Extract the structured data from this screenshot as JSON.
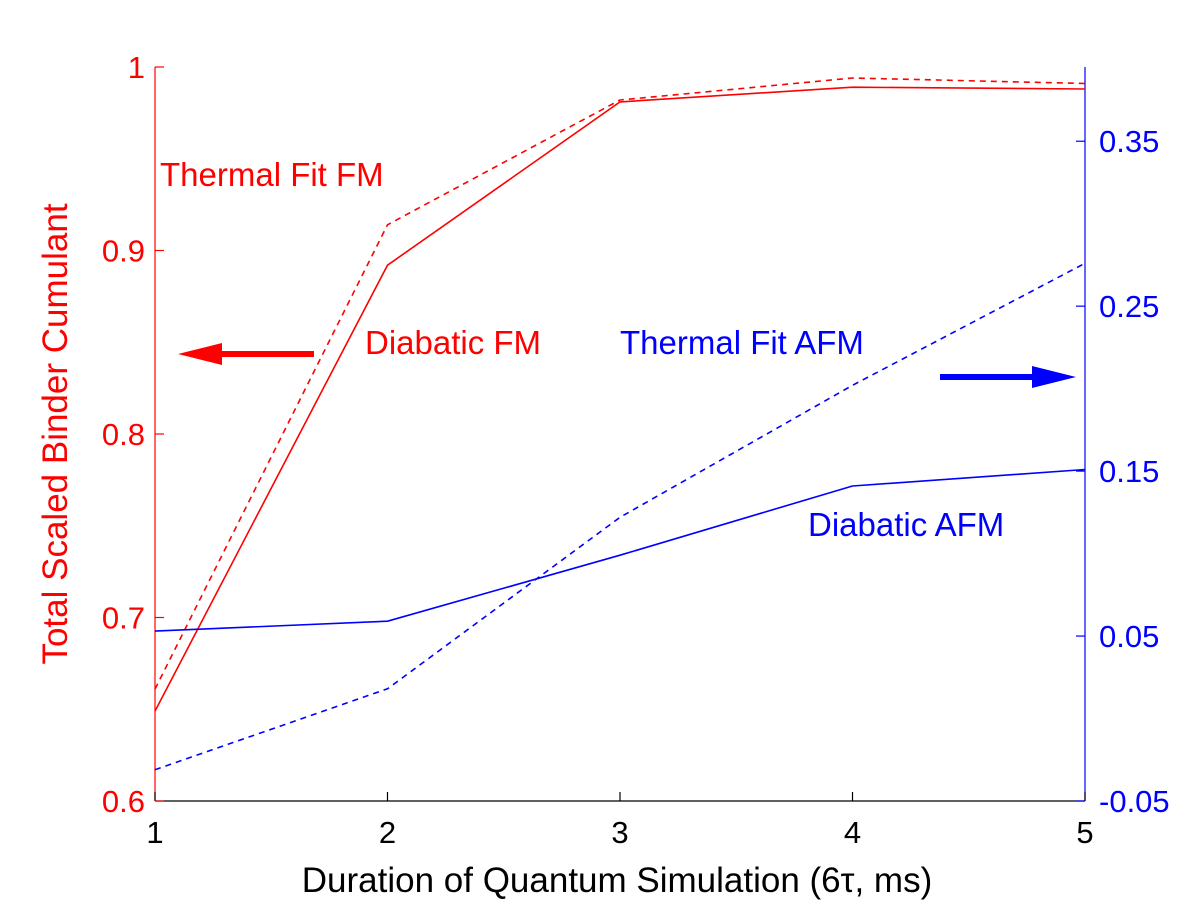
{
  "chart_data": {
    "type": "line",
    "x": [
      1,
      2,
      3,
      4,
      5
    ],
    "xlim": [
      1,
      5
    ],
    "xticks": [
      "1",
      "2",
      "3",
      "4",
      "5"
    ],
    "xlabel": "Duration of Quantum Simulation (6τ, ms)",
    "ylabel_left": "Total Scaled Binder Cumulant",
    "ylim_left": [
      0.6,
      1.0
    ],
    "yticks_left": [
      "0.6",
      "0.7",
      "0.8",
      "0.9",
      "1"
    ],
    "ylim_right": [
      -0.05,
      0.395
    ],
    "yticks_right": [
      "-0.05",
      "0.05",
      "0.15",
      "0.25",
      "0.35"
    ],
    "ytick_values_right": [
      -0.05,
      0.05,
      0.15,
      0.25,
      0.35
    ],
    "grid": false,
    "colors": {
      "fm": "#ff0000",
      "afm": "#0000ff",
      "axis": "#000000"
    },
    "series": [
      {
        "name": "Diabatic FM",
        "axis": "left",
        "style": "solid",
        "color": "#ff0000",
        "values": [
          0.649,
          0.892,
          0.981,
          0.989,
          0.988
        ]
      },
      {
        "name": "Thermal Fit FM",
        "axis": "left",
        "style": "dashed",
        "color": "#ff0000",
        "values": [
          0.661,
          0.914,
          0.982,
          0.994,
          0.991
        ]
      },
      {
        "name": "Diabatic AFM",
        "axis": "right",
        "style": "solid",
        "color": "#0000ff",
        "values": [
          0.053,
          0.059,
          0.099,
          0.141,
          0.151
        ]
      },
      {
        "name": "Thermal Fit AFM",
        "axis": "right",
        "style": "dashed",
        "color": "#0000ff",
        "values": [
          -0.031,
          0.018,
          0.122,
          0.202,
          0.276
        ]
      }
    ],
    "annotations": [
      {
        "text": "Thermal Fit FM",
        "color": "#ff0000"
      },
      {
        "text": "Diabatic FM",
        "color": "#ff0000"
      },
      {
        "text": "Thermal Fit AFM",
        "color": "#0000ff"
      },
      {
        "text": "Diabatic AFM",
        "color": "#0000ff"
      }
    ],
    "arrows": [
      {
        "direction": "left",
        "color": "#ff0000",
        "meaning": "left-axis"
      },
      {
        "direction": "right",
        "color": "#0000ff",
        "meaning": "right-axis"
      }
    ]
  }
}
